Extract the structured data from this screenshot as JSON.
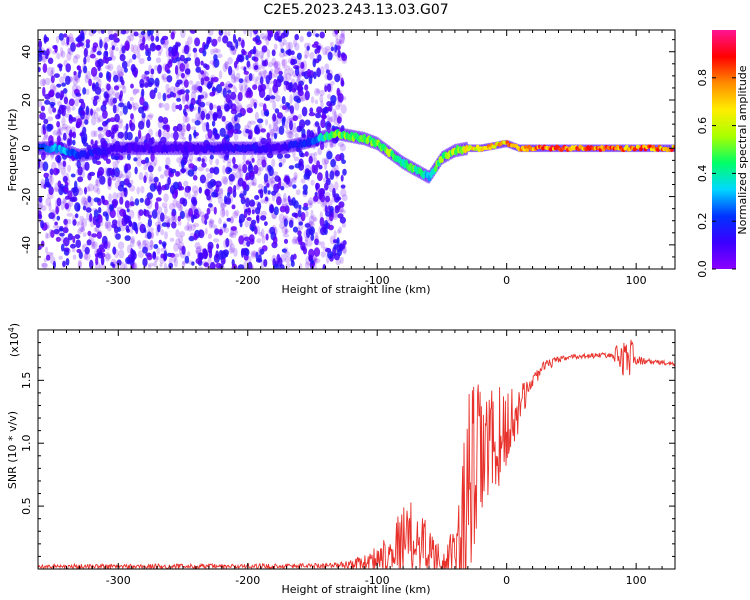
{
  "title": "C2E5.2023.243.13.03.G07",
  "colors": {
    "snr_line": "#e8302a",
    "spectro_background": "#ffffff",
    "colorbar": [
      "#8b00ff",
      "#3a00ff",
      "#0033ff",
      "#00d8ff",
      "#00ff66",
      "#aaff00",
      "#ffee00",
      "#ff8c00",
      "#ff0000",
      "#ff1493"
    ]
  },
  "chart_data": [
    {
      "type": "heatmap",
      "name": "spectrogram",
      "xlabel": "Height of straight line (km)",
      "ylabel": "Frequency (Hz)",
      "xlim": [
        -362,
        130
      ],
      "ylim": [
        -50,
        49
      ],
      "xticks": [
        -300,
        -200,
        -100,
        0,
        100
      ],
      "xtick_labels": [
        "-300",
        "-200",
        "-100",
        "0",
        "100"
      ],
      "yticks": [
        -40,
        -20,
        0,
        20,
        40
      ],
      "ytick_labels": [
        "-40",
        "-20",
        "0",
        "20",
        "40"
      ],
      "colorbar": {
        "label": "Normalized spectral amplitude",
        "range": [
          0,
          1
        ],
        "ticks": [
          0,
          0.2,
          0.4,
          0.6,
          0.8
        ],
        "tick_labels": [
          "0.0",
          "0.2",
          "0.4",
          "0.6",
          "0.8"
        ]
      },
      "noise_region_x": [
        -362,
        -125
      ],
      "ridge": {
        "x": [
          -362,
          -345,
          -330,
          -300,
          -250,
          -200,
          -175,
          -150,
          -140,
          -130,
          -120,
          -110,
          -100,
          -90,
          -80,
          -70,
          -60,
          -55,
          -50,
          -40,
          -30,
          -20,
          -10,
          0,
          10,
          30,
          60,
          90,
          130
        ],
        "freq": [
          0,
          0,
          -3,
          0,
          0,
          0,
          0,
          3,
          5,
          6,
          5,
          4,
          2,
          -2,
          -6,
          -9,
          -12,
          -8,
          -4,
          -1,
          0,
          0,
          1,
          2,
          0,
          0,
          0,
          0,
          0
        ],
        "amplitude": [
          0.2,
          0.35,
          0.2,
          0.1,
          0.1,
          0.15,
          0.1,
          0.25,
          0.45,
          0.55,
          0.5,
          0.55,
          0.5,
          0.55,
          0.45,
          0.5,
          0.35,
          0.5,
          0.55,
          0.6,
          0.65,
          0.7,
          0.75,
          0.8,
          0.85,
          0.85,
          0.85,
          0.85,
          0.8
        ]
      }
    },
    {
      "type": "line",
      "name": "snr",
      "xlabel": "Height of straight line (km)",
      "ylabel": "SNR (10 * v/v)",
      "y_multiplier": "(x10",
      "y_multiplier_exp": "4",
      "y_multiplier_close": ")",
      "xlim": [
        -362,
        130
      ],
      "ylim": [
        0,
        1.9
      ],
      "xticks": [
        -300,
        -200,
        -100,
        0,
        100
      ],
      "xtick_labels": [
        "-300",
        "-200",
        "-100",
        "0",
        "100"
      ],
      "yticks": [
        0.5,
        1.0,
        1.5
      ],
      "ytick_labels": [
        "0.5",
        "1.0",
        "1.5"
      ],
      "x": [
        -362,
        -300,
        -200,
        -130,
        -110,
        -100,
        -90,
        -80,
        -70,
        -60,
        -50,
        -40,
        -35,
        -30,
        -25,
        -20,
        -15,
        -10,
        -5,
        0,
        5,
        10,
        20,
        30,
        40,
        50,
        60,
        70,
        80,
        90,
        95,
        100,
        110,
        120,
        130
      ],
      "y": [
        0.02,
        0.02,
        0.02,
        0.03,
        0.05,
        0.09,
        0.15,
        0.22,
        0.25,
        0.17,
        0.06,
        0.1,
        0.3,
        0.6,
        0.8,
        0.9,
        0.95,
        1.0,
        1.05,
        1.12,
        1.18,
        1.3,
        1.5,
        1.62,
        1.66,
        1.69,
        1.69,
        1.7,
        1.7,
        1.69,
        1.7,
        1.66,
        1.65,
        1.64,
        1.63
      ],
      "noise_amplitude": [
        0.02,
        0.02,
        0.02,
        0.02,
        0.06,
        0.1,
        0.18,
        0.3,
        0.3,
        0.2,
        0.08,
        0.25,
        0.5,
        0.8,
        0.7,
        0.6,
        0.5,
        0.45,
        0.4,
        0.35,
        0.3,
        0.15,
        0.06,
        0.04,
        0.03,
        0.02,
        0.02,
        0.02,
        0.02,
        0.15,
        0.2,
        0.04,
        0.02,
        0.02,
        0.02
      ]
    }
  ]
}
